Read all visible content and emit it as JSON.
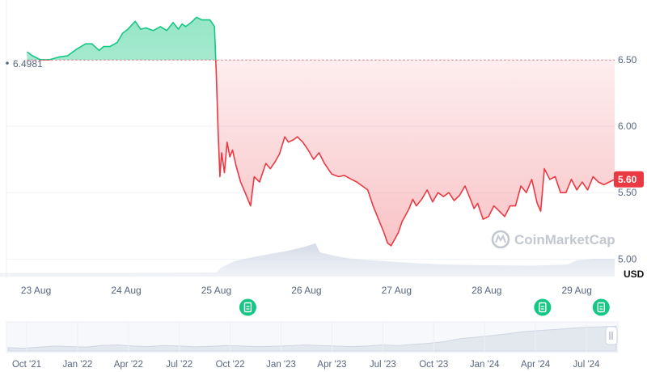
{
  "chart_data": {
    "type": "area",
    "baseline": {
      "value": 6.4981,
      "label": "6.4981"
    },
    "current": {
      "value": 5.6,
      "label": "5.60",
      "color": "#ea3943"
    },
    "unit": "USD",
    "watermark": "CoinMarketCap",
    "colors": {
      "up": "#16c784",
      "down": "#ea3943",
      "event": "#16c784"
    },
    "ylim": [
      4.85,
      6.95
    ],
    "y_ticks": [
      {
        "value": 6.5,
        "label": "6.50"
      },
      {
        "value": 6.0,
        "label": "6.00"
      },
      {
        "value": 5.5,
        "label": "5.50"
      },
      {
        "value": 5.0,
        "label": "5.00"
      }
    ],
    "xlim": [
      22.6,
      29.42
    ],
    "x_ticks": [
      {
        "value": 23,
        "label": "23 Aug"
      },
      {
        "value": 24,
        "label": "24 Aug"
      },
      {
        "value": 25,
        "label": "25 Aug"
      },
      {
        "value": 26,
        "label": "26 Aug"
      },
      {
        "value": 27,
        "label": "27 Aug"
      },
      {
        "value": 28,
        "label": "28 Aug"
      },
      {
        "value": 29,
        "label": "29 Aug"
      }
    ],
    "series": [
      {
        "x": [
          22.9,
          22.96,
          23.05,
          23.15,
          23.25,
          23.35,
          23.45,
          23.55,
          23.62,
          23.7,
          23.75,
          23.82,
          23.9,
          23.96,
          24.02,
          24.1,
          24.16,
          24.22,
          24.3,
          24.38,
          24.45,
          24.52,
          24.58,
          24.62,
          24.66,
          24.72,
          24.78,
          24.84,
          24.88,
          24.93,
          24.98,
          25.0,
          25.02,
          25.04,
          25.06,
          25.09,
          25.12,
          25.15,
          25.18,
          25.22,
          25.27,
          25.32,
          25.38,
          25.42,
          25.48,
          25.55,
          25.6,
          25.65,
          25.7,
          25.76,
          25.8,
          25.86,
          25.9,
          25.96,
          26.02,
          26.08,
          26.14,
          26.2,
          26.28,
          26.36,
          26.42,
          26.5,
          26.56,
          26.62,
          26.68,
          26.74,
          26.8,
          26.86,
          26.9,
          26.94,
          26.98,
          27.02,
          27.06,
          27.1,
          27.14,
          27.18,
          27.22,
          27.28,
          27.34,
          27.4,
          27.46,
          27.52,
          27.58,
          27.64,
          27.7,
          27.76,
          27.82,
          27.86,
          27.9,
          27.96,
          28.02,
          28.08,
          28.14,
          28.2,
          28.26,
          28.32,
          28.38,
          28.44,
          28.5,
          28.56,
          28.6,
          28.64,
          28.7,
          28.76,
          28.82,
          28.88,
          28.94,
          29.0,
          29.06,
          29.12,
          29.18,
          29.24,
          29.3,
          29.36,
          29.42
        ],
        "y": [
          6.56,
          6.53,
          6.5,
          6.5,
          6.52,
          6.53,
          6.58,
          6.62,
          6.62,
          6.57,
          6.6,
          6.6,
          6.63,
          6.7,
          6.73,
          6.79,
          6.73,
          6.74,
          6.72,
          6.75,
          6.72,
          6.78,
          6.73,
          6.77,
          6.75,
          6.78,
          6.82,
          6.8,
          6.8,
          6.8,
          6.75,
          6.4,
          5.96,
          5.62,
          5.8,
          5.65,
          5.88,
          5.77,
          5.82,
          5.7,
          5.58,
          5.5,
          5.4,
          5.62,
          5.58,
          5.72,
          5.68,
          5.73,
          5.79,
          5.92,
          5.88,
          5.9,
          5.92,
          5.88,
          5.82,
          5.75,
          5.8,
          5.72,
          5.64,
          5.62,
          5.63,
          5.6,
          5.58,
          5.55,
          5.52,
          5.4,
          5.3,
          5.2,
          5.12,
          5.1,
          5.15,
          5.2,
          5.28,
          5.33,
          5.38,
          5.45,
          5.4,
          5.45,
          5.52,
          5.43,
          5.5,
          5.47,
          5.5,
          5.44,
          5.48,
          5.55,
          5.45,
          5.38,
          5.42,
          5.3,
          5.32,
          5.4,
          5.36,
          5.32,
          5.4,
          5.4,
          5.55,
          5.5,
          5.6,
          5.42,
          5.36,
          5.68,
          5.6,
          5.62,
          5.5,
          5.5,
          5.6,
          5.52,
          5.58,
          5.52,
          5.62,
          5.58,
          5.56,
          5.58,
          5.6
        ]
      }
    ],
    "volume": {
      "x": [
        22.6,
        24.0,
        25.0,
        25.05,
        25.2,
        25.4,
        25.6,
        25.8,
        26.0,
        26.1,
        26.15,
        26.3,
        26.5,
        27.0,
        27.5,
        28.0,
        28.5,
        28.9,
        29.0,
        29.2,
        29.42
      ],
      "v": [
        0.09,
        0.09,
        0.1,
        0.22,
        0.38,
        0.48,
        0.56,
        0.64,
        0.75,
        0.82,
        0.6,
        0.52,
        0.44,
        0.36,
        0.3,
        0.28,
        0.27,
        0.3,
        0.4,
        0.44,
        0.44
      ]
    },
    "events": [
      {
        "x": 25.35
      },
      {
        "x": 28.62
      },
      {
        "x": 29.27
      }
    ],
    "navigator": {
      "ticks": [
        {
          "label": "Oct '21"
        },
        {
          "label": "Jan '22"
        },
        {
          "label": "Apr '22"
        },
        {
          "label": "Jul '22"
        },
        {
          "label": "Oct '22"
        },
        {
          "label": "Jan '23"
        },
        {
          "label": "Apr '23"
        },
        {
          "label": "Jul '23"
        },
        {
          "label": "Oct '23"
        },
        {
          "label": "Jan '24"
        },
        {
          "label": "Apr '24"
        },
        {
          "label": "Jul '24"
        }
      ],
      "profile": [
        0.12,
        0.1,
        0.14,
        0.18,
        0.16,
        0.14,
        0.2,
        0.22,
        0.18,
        0.16,
        0.2,
        0.18,
        0.15,
        0.17,
        0.2,
        0.18,
        0.16,
        0.17,
        0.19,
        0.22,
        0.2,
        0.18,
        0.16,
        0.18,
        0.22,
        0.2,
        0.24,
        0.28,
        0.34,
        0.45,
        0.5,
        0.56,
        0.62,
        0.7,
        0.74,
        0.78,
        0.82,
        0.86,
        0.88,
        0.9
      ]
    }
  }
}
